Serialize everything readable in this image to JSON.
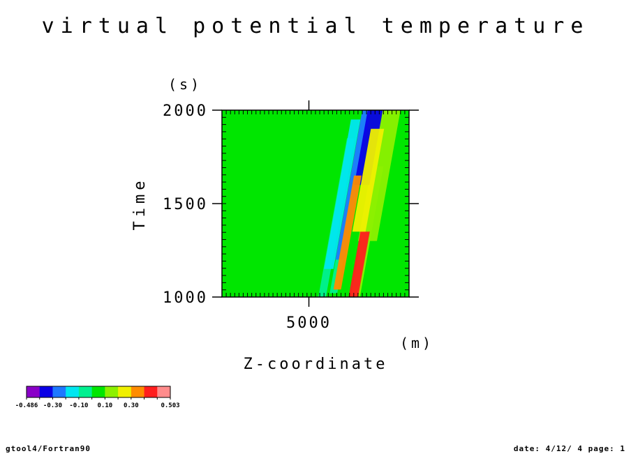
{
  "chart_data": {
    "type": "heatmap",
    "title": "virtual potential temperature",
    "xlabel": "Z-coordinate",
    "xunit": "(m)",
    "ylabel": "Time",
    "yunit": "(s)",
    "xlim": [
      400,
      10300
    ],
    "ylim": [
      1000,
      2000
    ],
    "xticks": [
      5000
    ],
    "yticks": [
      1000,
      1500,
      2000
    ],
    "colorbar": {
      "colors": [
        "#8a00c8",
        "#0a00e6",
        "#1e78ff",
        "#00e6f0",
        "#00f090",
        "#00e600",
        "#8cf000",
        "#f0f000",
        "#ff8c00",
        "#ff1e1e",
        "#ff8c8c"
      ],
      "tick_labels": [
        "-0.486",
        "-0.30",
        "-0.10",
        "0.10",
        "0.30",
        "0.503"
      ]
    },
    "background_color": "#00e600",
    "bands": [
      {
        "x0": 5500,
        "x1": 5900,
        "y0": 1000,
        "y1": 1850,
        "class": "0.10 to 0.30",
        "color": "#00f090"
      },
      {
        "x0": 6100,
        "x1": 6500,
        "y0": 1020,
        "y1": 1980,
        "class": "0.10 to 0.30",
        "color": "#00f090"
      },
      {
        "x0": 7200,
        "x1": 7700,
        "y0": 1000,
        "y1": 1700,
        "class": "0.30",
        "color": "#8cf000"
      },
      {
        "x0": 7600,
        "x1": 8600,
        "y0": 1300,
        "y1": 2000,
        "class": "0.30",
        "color": "#8cf000"
      },
      {
        "x0": 5800,
        "x1": 6300,
        "y0": 1150,
        "y1": 1950,
        "class": "-0.10",
        "color": "#00e6f0"
      },
      {
        "x0": 6400,
        "x1": 6850,
        "y0": 1200,
        "y1": 2000,
        "class": "-0.30",
        "color": "#1e78ff"
      },
      {
        "x0": 7400,
        "x1": 8200,
        "y0": 1600,
        "y1": 2000,
        "class": "-0.486",
        "color": "#0a00e6"
      },
      {
        "x0": 6300,
        "x1": 6700,
        "y0": 1040,
        "y1": 1650,
        "class": "0.30 to 0.503",
        "color": "#ff8c00"
      },
      {
        "x0": 7100,
        "x1": 7600,
        "y0": 1000,
        "y1": 1350,
        "class": "0.503",
        "color": "#ff1e1e"
      },
      {
        "x0": 7300,
        "x1": 8000,
        "y0": 1350,
        "y1": 1900,
        "class": "0.30",
        "color": "#f0f000"
      }
    ]
  },
  "footer": {
    "left": "gtool4/Fortran90",
    "right": "date: 4/12/ 4 page: 1"
  }
}
